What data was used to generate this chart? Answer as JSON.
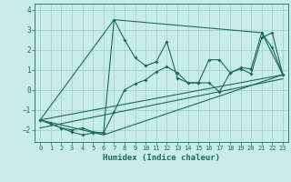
{
  "xlabel": "Humidex (Indice chaleur)",
  "xlim": [
    -0.5,
    23.5
  ],
  "ylim": [
    -2.6,
    4.3
  ],
  "xticks": [
    0,
    1,
    2,
    3,
    4,
    5,
    6,
    7,
    8,
    9,
    10,
    11,
    12,
    13,
    14,
    15,
    16,
    17,
    18,
    19,
    20,
    21,
    22,
    23
  ],
  "yticks": [
    -2,
    -1,
    0,
    1,
    2,
    3,
    4
  ],
  "bg_color": "#c8ece6",
  "line_color": "#1a6b5e",
  "grid_color": "#9dcec5",
  "line1_x": [
    0,
    1,
    2,
    3,
    4,
    5,
    6,
    7,
    8,
    9,
    10,
    11,
    12,
    13,
    14,
    15,
    16,
    17,
    18,
    19,
    20,
    21,
    22,
    23
  ],
  "line1_y": [
    -1.5,
    -1.7,
    -1.9,
    -2.0,
    -1.9,
    -2.1,
    -2.15,
    -1.1,
    0.0,
    0.3,
    0.5,
    0.9,
    1.15,
    0.85,
    0.35,
    0.35,
    0.35,
    -0.1,
    0.85,
    1.05,
    0.8,
    2.6,
    2.85,
    0.75
  ],
  "line2_x": [
    0,
    1,
    2,
    3,
    4,
    5,
    6,
    7,
    8,
    9,
    10,
    11,
    12,
    13,
    14,
    15,
    16,
    17,
    18,
    19,
    20,
    21,
    22,
    23
  ],
  "line2_y": [
    -1.5,
    -1.7,
    -1.9,
    -2.1,
    -2.25,
    -2.15,
    -2.15,
    3.5,
    2.5,
    1.6,
    1.2,
    1.4,
    2.4,
    0.6,
    0.35,
    0.35,
    1.5,
    1.5,
    0.85,
    1.1,
    1.05,
    2.85,
    2.1,
    0.75
  ],
  "envelope_x": [
    0,
    7,
    21,
    23,
    6,
    0
  ],
  "envelope_y": [
    -1.5,
    3.5,
    2.85,
    0.75,
    -2.25,
    -1.5
  ],
  "trend1_x": [
    0,
    23
  ],
  "trend1_y": [
    -1.5,
    0.75
  ],
  "trend2_x": [
    0,
    23
  ],
  "trend2_y": [
    -1.9,
    0.55
  ]
}
